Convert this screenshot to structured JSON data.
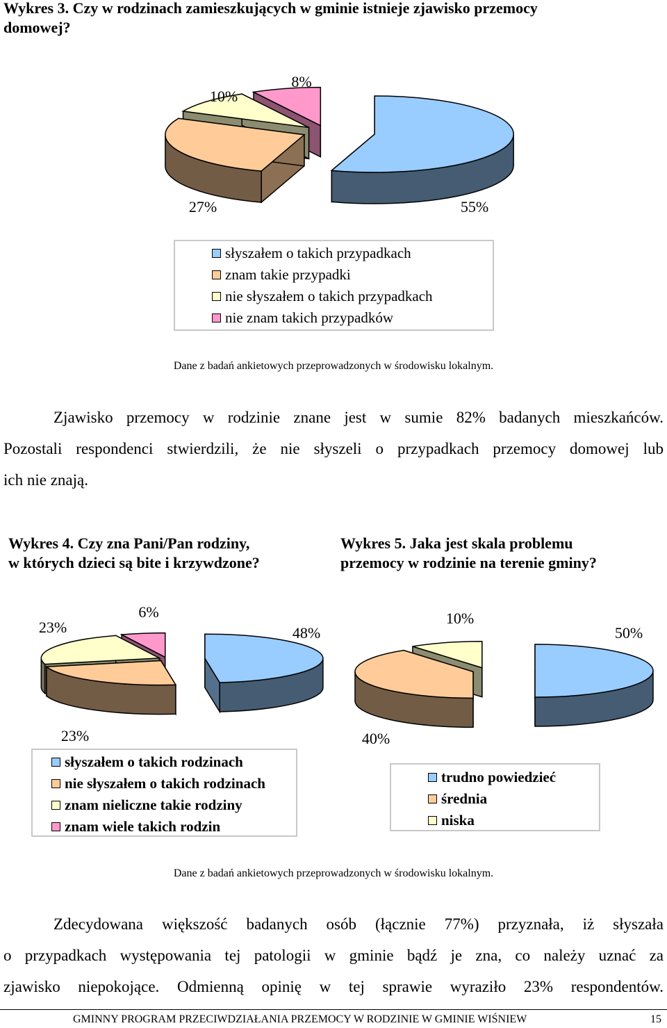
{
  "chart3": {
    "title_line1": "Wykres 3. Czy w rodzinach zamieszkujących w gminie istnieje zjawisko przemocy",
    "title_line2": "domowej?",
    "chart_data": {
      "type": "pie",
      "categories": [
        "słyszałem o takich przypadkach",
        "znam takie przypadki",
        "nie słyszałem o takich przypadkach",
        "nie znam takich przypadków"
      ],
      "values": [
        55,
        27,
        10,
        8
      ],
      "labels": [
        "55%",
        "27%",
        "10%",
        "8%"
      ],
      "colors": [
        "#99ccff",
        "#ffcc99",
        "#ffffcc",
        "#ff99cc"
      ],
      "legend_placement": "bottom"
    },
    "source": "Dane z badań ankietowych przeprowadzonych w środowisku lokalnym."
  },
  "paragraph1": {
    "line1": "Zjawisko przemocy w rodzinie znane jest w sumie 82% badanych mieszkańców.",
    "line2": "Pozostali respondenci stwierdzili, że nie słyszeli o przypadkach przemocy domowej lub",
    "line3": "ich nie znają."
  },
  "chart4": {
    "title_line1": "Wykres 4. Czy zna Pani/Pan rodziny,",
    "title_line2": "w których dzieci są bite i krzywdzone?",
    "chart_data": {
      "type": "pie",
      "categories": [
        "słyszałem o takich rodzinach",
        "nie słyszałem o takich rodzinach",
        "znam nieliczne takie rodziny",
        "znam wiele takich rodzin"
      ],
      "values": [
        48,
        23,
        23,
        6
      ],
      "labels": [
        "48%",
        "23%",
        "23%",
        "6%"
      ],
      "colors": [
        "#99ccff",
        "#ffcc99",
        "#ffffcc",
        "#ff99cc"
      ],
      "legend_placement": "bottom"
    }
  },
  "chart5": {
    "title_line1": "Wykres 5. Jaka jest skala problemu",
    "title_line2": "przemocy w rodzinie na terenie gminy?",
    "chart_data": {
      "type": "pie",
      "categories": [
        "trudno powiedzieć",
        "średnia",
        "niska"
      ],
      "values": [
        50,
        40,
        10
      ],
      "labels": [
        "50%",
        "40%",
        "10%"
      ],
      "colors": [
        "#99ccff",
        "#ffcc99",
        "#ffffcc"
      ],
      "legend_placement": "bottom"
    }
  },
  "source2": "Dane z badań ankietowych przeprowadzonych w środowisku lokalnym.",
  "paragraph2": {
    "line1": "Zdecydowana większość badanych osób (łącznie 77%) przyznała, iż słyszała",
    "line2": "o przypadkach występowania tej patologii w gminie bądź je zna, co należy uznać za",
    "line3": "zjawisko niepokojące. Odmienną opinię w tej sprawie wyraziło 23% respondentów."
  },
  "footer": {
    "text": "GMINNY PROGRAM PRZECIWDZIAŁANIA PRZEMOCY W RODZINIE W GMINIE WIŚNIEW",
    "page": "15"
  }
}
